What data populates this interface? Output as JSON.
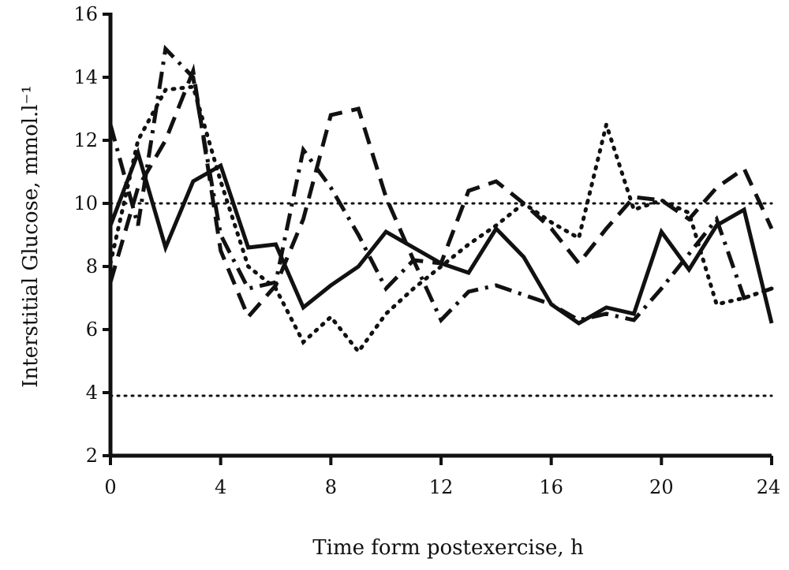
{
  "chart_data": {
    "type": "line",
    "title": "",
    "xlabel": "Time form postexercise,  h",
    "ylabel": "Interstitial Glucose, mmol.l⁻¹",
    "xlim": [
      0,
      24
    ],
    "ylim": [
      2,
      16
    ],
    "xticks": [
      "0",
      "4",
      "8",
      "12",
      "16",
      "20",
      "24"
    ],
    "yticks": [
      "2",
      "4",
      "6",
      "8",
      "10",
      "12",
      "14",
      "16"
    ],
    "xtick_values": [
      0,
      4,
      8,
      12,
      16,
      20,
      24
    ],
    "ytick_values": [
      2,
      4,
      6,
      8,
      10,
      12,
      14,
      16
    ],
    "reference_lines": [
      {
        "y": 10,
        "style": "dotted"
      },
      {
        "y": 3.9,
        "style": "dotted"
      }
    ],
    "legend": "none",
    "grid": false,
    "series": [
      {
        "style": "solid",
        "x": [
          0,
          1,
          2,
          3,
          4,
          5,
          6,
          7,
          8,
          9,
          10,
          11,
          12,
          13,
          14,
          15,
          16,
          17,
          18,
          19,
          20,
          21,
          22,
          23,
          24
        ],
        "y": [
          9.3,
          11.6,
          8.6,
          10.7,
          11.2,
          8.6,
          8.7,
          6.7,
          7.4,
          8.0,
          9.1,
          8.6,
          8.1,
          7.8,
          9.2,
          8.3,
          6.8,
          6.2,
          6.7,
          6.5,
          9.1,
          7.9,
          9.3,
          9.8,
          6.2
        ]
      },
      {
        "style": "dashed",
        "x": [
          0,
          1,
          2,
          3,
          4,
          5,
          6,
          7,
          8,
          9,
          10,
          11,
          12,
          13,
          14,
          15,
          16,
          17,
          18,
          19,
          20,
          21,
          22,
          23,
          24
        ],
        "y": [
          7.5,
          10.5,
          12.0,
          14.2,
          8.5,
          6.4,
          7.4,
          9.5,
          12.8,
          13.0,
          10.2,
          8.2,
          8.1,
          10.4,
          10.7,
          10.0,
          9.2,
          8.1,
          9.2,
          10.2,
          10.1,
          9.5,
          10.5,
          11.1,
          9.2
        ]
      },
      {
        "style": "dash-dot",
        "x": [
          0,
          1,
          2,
          3,
          4,
          5,
          6,
          7,
          8,
          9,
          10,
          11,
          12,
          13,
          14,
          15,
          16,
          17,
          18,
          19,
          20,
          21,
          22,
          23,
          24
        ],
        "y": [
          12.5,
          9.3,
          14.9,
          14.0,
          9.0,
          7.3,
          7.5,
          11.7,
          10.5,
          9.0,
          7.3,
          8.2,
          6.3,
          7.2,
          7.4,
          7.1,
          6.8,
          6.3,
          6.5,
          6.3,
          7.3,
          8.4,
          9.5,
          7.0,
          7.3
        ]
      },
      {
        "style": "dotted",
        "x": [
          0,
          1,
          2,
          3,
          4,
          5,
          6,
          7,
          8,
          9,
          10,
          11,
          12,
          13,
          14,
          15,
          16,
          17,
          18,
          19,
          20,
          21,
          22,
          23,
          24
        ],
        "y": [
          8.1,
          12.0,
          13.6,
          13.7,
          10.7,
          8.0,
          7.3,
          5.6,
          6.4,
          5.3,
          6.5,
          7.3,
          8.0,
          8.7,
          9.3,
          10.0,
          9.4,
          8.9,
          12.5,
          9.8,
          10.1,
          9.7,
          6.8,
          7.0,
          7.3
        ]
      }
    ]
  }
}
